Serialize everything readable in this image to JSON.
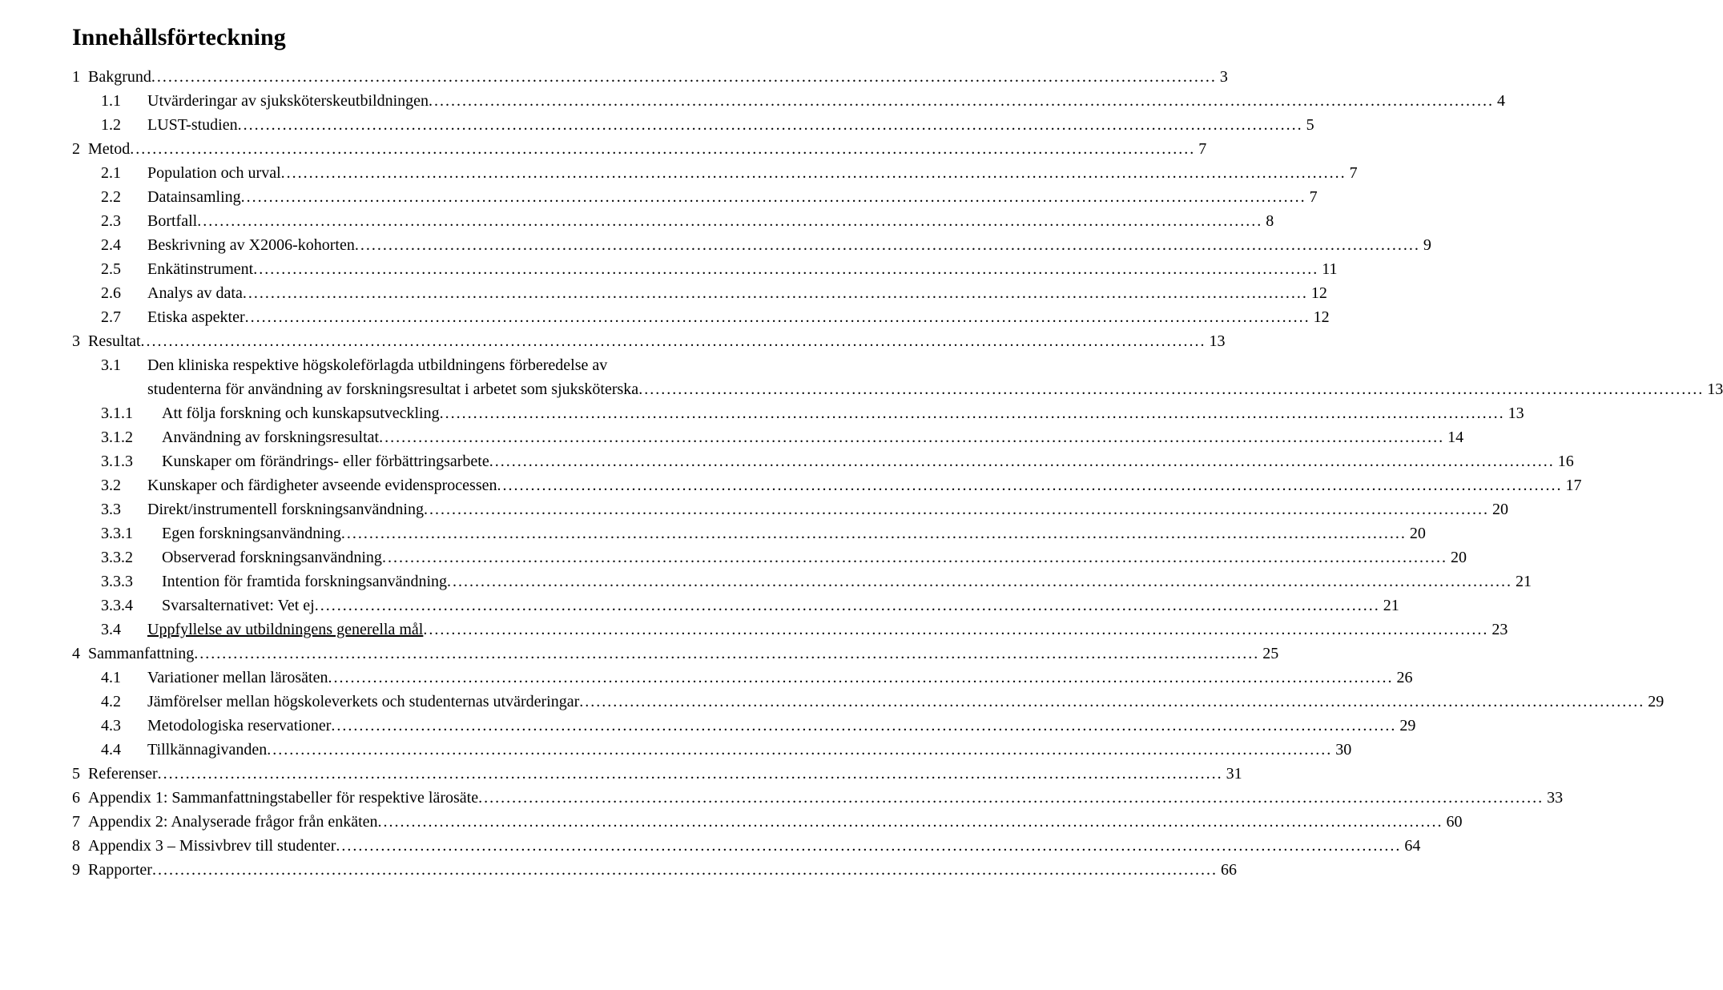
{
  "title": "Innehållsförteckning",
  "fonts": {
    "family": "Times New Roman",
    "title_size_pt": 22,
    "body_size_pt": 15
  },
  "colors": {
    "text": "#000000",
    "background": "#ffffff"
  },
  "toc": [
    {
      "num": "1",
      "label": "Bakgrund",
      "page": "3",
      "indent": 0,
      "underline": false
    },
    {
      "num": "1.1",
      "label": "Utvärderingar av sjuksköterskeutbildningen",
      "page": "4",
      "indent": 1,
      "underline": false
    },
    {
      "num": "1.2",
      "label": "LUST-studien",
      "page": "5",
      "indent": 1,
      "underline": false
    },
    {
      "num": "2",
      "label": "Metod",
      "page": "7",
      "indent": 0,
      "underline": false
    },
    {
      "num": "2.1",
      "label": "Population och urval",
      "page": "7",
      "indent": 1,
      "underline": false
    },
    {
      "num": "2.2",
      "label": "Datainsamling",
      "page": "7",
      "indent": 1,
      "underline": false
    },
    {
      "num": "2.3",
      "label": "Bortfall",
      "page": "8",
      "indent": 1,
      "underline": false
    },
    {
      "num": "2.4",
      "label": "Beskrivning av X2006-kohorten",
      "page": "9",
      "indent": 1,
      "underline": false
    },
    {
      "num": "2.5",
      "label": "Enkätinstrument",
      "page": "11",
      "indent": 1,
      "underline": false
    },
    {
      "num": "2.6",
      "label": "Analys av data",
      "page": "12",
      "indent": 1,
      "underline": false
    },
    {
      "num": "2.7",
      "label": "Etiska aspekter",
      "page": "12",
      "indent": 1,
      "underline": false
    },
    {
      "num": "3",
      "label": "Resultat",
      "page": "13",
      "indent": 0,
      "underline": false
    },
    {
      "num": "3.1",
      "label": "Den kliniska respektive högskoleförlagda utbildningens förberedelse av",
      "page": null,
      "indent": 1,
      "underline": false,
      "wrap_line1": true
    },
    {
      "num": "",
      "label": "studenterna för användning av forskningsresultat i arbetet som sjuksköterska",
      "page": "13",
      "indent": 1,
      "underline": false,
      "wrap_line2": true
    },
    {
      "num": "3.1.1",
      "label": "Att följa forskning och kunskapsutveckling",
      "page": "13",
      "indent": 2,
      "underline": false
    },
    {
      "num": "3.1.2",
      "label": "Användning av forskningsresultat",
      "page": "14",
      "indent": 2,
      "underline": false
    },
    {
      "num": "3.1.3",
      "label": "Kunskaper om förändrings- eller förbättringsarbete",
      "page": "16",
      "indent": 2,
      "underline": false
    },
    {
      "num": "3.2",
      "label": "Kunskaper och färdigheter avseende evidensprocessen",
      "page": "17",
      "indent": 1,
      "underline": false
    },
    {
      "num": "3.3",
      "label": "Direkt/instrumentell forskningsanvändning",
      "page": "20",
      "indent": 1,
      "underline": false
    },
    {
      "num": "3.3.1",
      "label": "Egen forskningsanvändning",
      "page": "20",
      "indent": 2,
      "underline": false
    },
    {
      "num": "3.3.2",
      "label": "Observerad forskningsanvändning",
      "page": "20",
      "indent": 2,
      "underline": false
    },
    {
      "num": "3.3.3",
      "label": "Intention för framtida forskningsanvändning",
      "page": "21",
      "indent": 2,
      "underline": false
    },
    {
      "num": "3.3.4",
      "label": "Svarsalternativet: Vet ej",
      "page": "21",
      "indent": 2,
      "underline": false
    },
    {
      "num": "3.4",
      "label": "Uppfyllelse av utbildningens generella mål",
      "page": "23",
      "indent": 1,
      "underline": true
    },
    {
      "num": "4",
      "label": "Sammanfattning",
      "page": "25",
      "indent": 0,
      "underline": false
    },
    {
      "num": "4.1",
      "label": "Variationer mellan lärosäten",
      "page": "26",
      "indent": 1,
      "underline": false
    },
    {
      "num": "4.2",
      "label": "Jämförelser mellan högskoleverkets och studenternas utvärderingar",
      "page": "29",
      "indent": 1,
      "underline": false
    },
    {
      "num": "4.3",
      "label": "Metodologiska reservationer",
      "page": "29",
      "indent": 1,
      "underline": false
    },
    {
      "num": "4.4",
      "label": "Tillkännagivanden",
      "page": "30",
      "indent": 1,
      "underline": false
    },
    {
      "num": "5",
      "label": "Referenser",
      "page": "31",
      "indent": 0,
      "underline": false
    },
    {
      "num": "6",
      "label": "Appendix 1: Sammanfattningstabeller för respektive lärosäte",
      "page": "33",
      "indent": 0,
      "underline": false
    },
    {
      "num": "7",
      "label": "Appendix 2: Analyserade frågor från enkäten",
      "page": "60",
      "indent": 0,
      "underline": false
    },
    {
      "num": "8",
      "label": "Appendix 3 – Missivbrev till studenter",
      "page": "64",
      "indent": 0,
      "underline": false
    },
    {
      "num": "9",
      "label": "Rapporter",
      "page": "66",
      "indent": 0,
      "underline": false
    }
  ]
}
